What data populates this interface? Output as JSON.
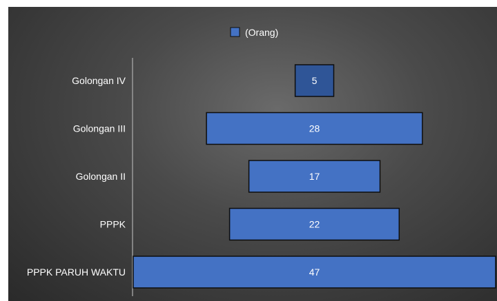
{
  "chart_data": {
    "type": "bar",
    "orientation": "horizontal",
    "layout": "centered-funnel",
    "categories": [
      "Golongan IV",
      "Golongan III",
      "Golongan II",
      "PPPK",
      "PPPK PARUH WAKTU"
    ],
    "values": [
      5,
      28,
      17,
      22,
      47
    ],
    "data_labels": [
      "5",
      "28",
      "17",
      "22",
      "47"
    ],
    "series": [
      {
        "name": "(Orang)",
        "values": [
          5,
          28,
          17,
          22,
          47
        ]
      }
    ],
    "xlim": [
      0,
      47
    ],
    "legend": {
      "position": "top",
      "label": "(Orang)"
    },
    "grid": false,
    "colors": {
      "bar": "#4472C4",
      "bar_top": "#2F5597",
      "border": "#0d0d0d",
      "background": "#3d3d3d",
      "text": "#ffffff",
      "axis": "#9a9a9a"
    }
  }
}
